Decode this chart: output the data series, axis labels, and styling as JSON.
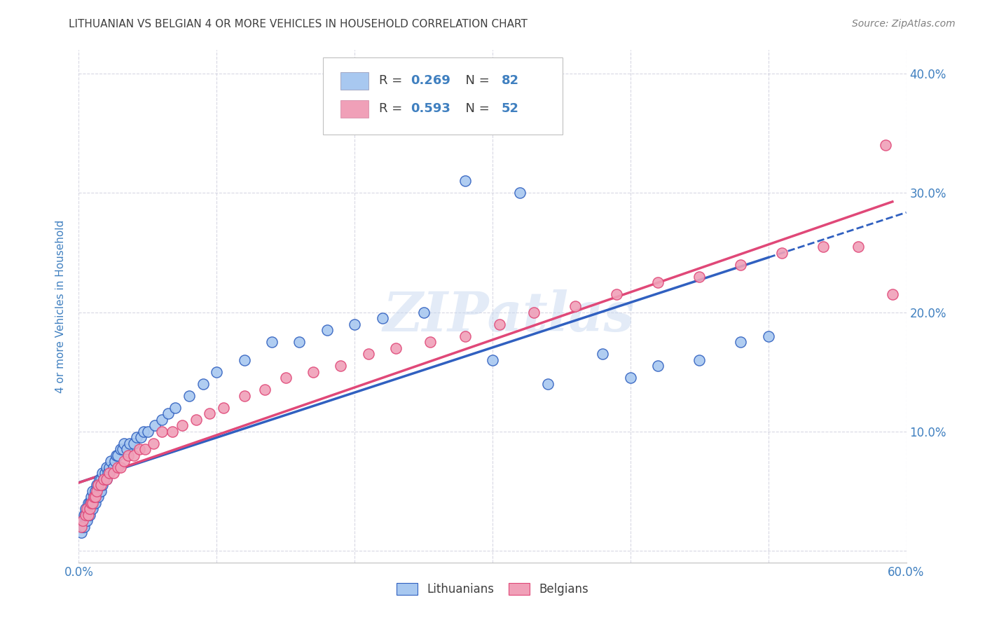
{
  "title": "LITHUANIAN VS BELGIAN 4 OR MORE VEHICLES IN HOUSEHOLD CORRELATION CHART",
  "source": "Source: ZipAtlas.com",
  "ylabel": "4 or more Vehicles in Household",
  "xlim": [
    0.0,
    0.6
  ],
  "ylim": [
    -0.01,
    0.42
  ],
  "xticks": [
    0.0,
    0.1,
    0.2,
    0.3,
    0.4,
    0.5,
    0.6
  ],
  "xticklabels": [
    "0.0%",
    "",
    "",
    "",
    "",
    "",
    "60.0%"
  ],
  "yticks": [
    0.0,
    0.1,
    0.2,
    0.3,
    0.4
  ],
  "yticklabels": [
    "",
    "10.0%",
    "20.0%",
    "30.0%",
    "40.0%"
  ],
  "blue_color": "#A8C8F0",
  "pink_color": "#F0A0B8",
  "blue_line_color": "#3060C0",
  "pink_line_color": "#E04878",
  "title_color": "#404040",
  "axis_label_color": "#4080C0",
  "tick_color": "#4080C0",
  "r_label_color": "#404040",
  "n_label_color": "#4080C0",
  "watermark_text": "ZIPatlas",
  "lith_x": [
    0.002,
    0.003,
    0.003,
    0.004,
    0.004,
    0.005,
    0.005,
    0.005,
    0.006,
    0.006,
    0.007,
    0.007,
    0.007,
    0.008,
    0.008,
    0.008,
    0.009,
    0.009,
    0.009,
    0.01,
    0.01,
    0.01,
    0.011,
    0.011,
    0.012,
    0.012,
    0.012,
    0.013,
    0.013,
    0.014,
    0.014,
    0.015,
    0.015,
    0.016,
    0.016,
    0.017,
    0.017,
    0.018,
    0.019,
    0.02,
    0.02,
    0.021,
    0.022,
    0.023,
    0.025,
    0.026,
    0.027,
    0.028,
    0.03,
    0.032,
    0.033,
    0.035,
    0.037,
    0.04,
    0.042,
    0.045,
    0.047,
    0.05,
    0.055,
    0.06,
    0.065,
    0.07,
    0.08,
    0.09,
    0.1,
    0.12,
    0.14,
    0.16,
    0.18,
    0.2,
    0.22,
    0.25,
    0.28,
    0.3,
    0.32,
    0.34,
    0.38,
    0.4,
    0.42,
    0.45,
    0.48,
    0.5
  ],
  "lith_y": [
    0.015,
    0.02,
    0.025,
    0.02,
    0.03,
    0.025,
    0.03,
    0.035,
    0.025,
    0.03,
    0.03,
    0.035,
    0.04,
    0.03,
    0.035,
    0.04,
    0.035,
    0.04,
    0.045,
    0.035,
    0.04,
    0.05,
    0.04,
    0.045,
    0.04,
    0.045,
    0.05,
    0.045,
    0.055,
    0.045,
    0.055,
    0.05,
    0.06,
    0.05,
    0.06,
    0.055,
    0.065,
    0.06,
    0.065,
    0.06,
    0.07,
    0.065,
    0.07,
    0.075,
    0.07,
    0.075,
    0.08,
    0.08,
    0.085,
    0.085,
    0.09,
    0.085,
    0.09,
    0.09,
    0.095,
    0.095,
    0.1,
    0.1,
    0.105,
    0.11,
    0.115,
    0.12,
    0.13,
    0.14,
    0.15,
    0.16,
    0.175,
    0.175,
    0.185,
    0.19,
    0.195,
    0.2,
    0.31,
    0.16,
    0.3,
    0.14,
    0.165,
    0.145,
    0.155,
    0.16,
    0.175,
    0.18
  ],
  "belg_x": [
    0.002,
    0.003,
    0.005,
    0.006,
    0.007,
    0.008,
    0.009,
    0.01,
    0.011,
    0.012,
    0.013,
    0.014,
    0.016,
    0.018,
    0.02,
    0.022,
    0.025,
    0.028,
    0.03,
    0.033,
    0.036,
    0.04,
    0.044,
    0.048,
    0.054,
    0.06,
    0.068,
    0.075,
    0.085,
    0.095,
    0.105,
    0.12,
    0.135,
    0.15,
    0.17,
    0.19,
    0.21,
    0.23,
    0.255,
    0.28,
    0.305,
    0.33,
    0.36,
    0.39,
    0.42,
    0.45,
    0.48,
    0.51,
    0.54,
    0.565,
    0.585,
    0.59
  ],
  "belg_y": [
    0.02,
    0.025,
    0.03,
    0.035,
    0.03,
    0.035,
    0.04,
    0.04,
    0.045,
    0.045,
    0.05,
    0.055,
    0.055,
    0.06,
    0.06,
    0.065,
    0.065,
    0.07,
    0.07,
    0.075,
    0.08,
    0.08,
    0.085,
    0.085,
    0.09,
    0.1,
    0.1,
    0.105,
    0.11,
    0.115,
    0.12,
    0.13,
    0.135,
    0.145,
    0.15,
    0.155,
    0.165,
    0.17,
    0.175,
    0.18,
    0.19,
    0.2,
    0.205,
    0.215,
    0.225,
    0.23,
    0.24,
    0.25,
    0.255,
    0.255,
    0.34,
    0.215
  ]
}
